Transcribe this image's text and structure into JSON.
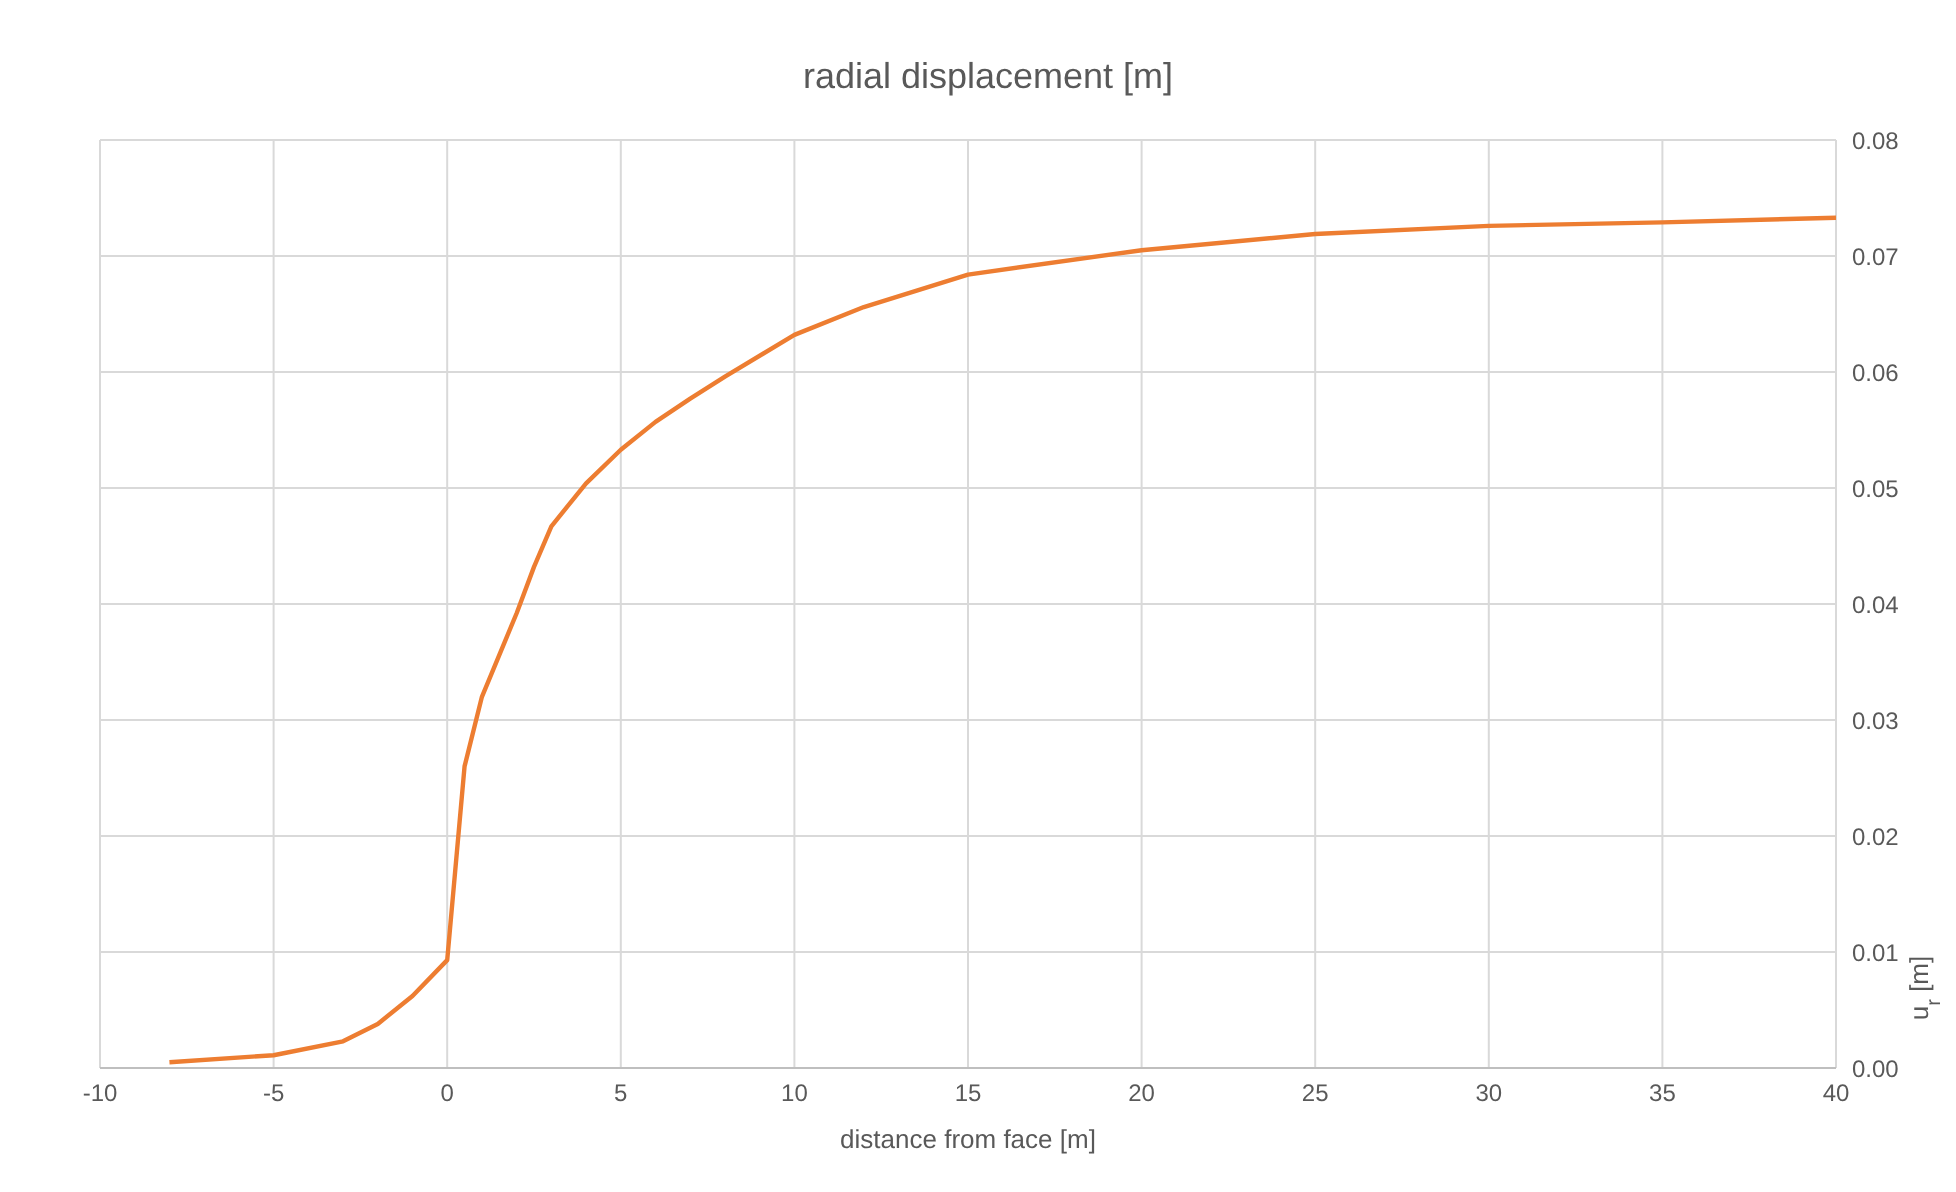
{
  "chart_data": {
    "type": "line",
    "title": "radial displacement [m]",
    "xlabel": "distance from face [m]",
    "ylabel": "u$_{r}$ [m]",
    "x": [
      -8,
      -5,
      -3,
      -2,
      -1,
      0,
      0.5,
      1,
      2,
      2.5,
      3,
      4,
      5,
      6,
      7,
      8,
      10,
      12,
      15,
      20,
      25,
      30,
      35,
      40
    ],
    "series": [
      {
        "color": "#ed7d31",
        "values": [
          0.0005,
          0.0011,
          0.0023,
          0.0038,
          0.0062,
          0.0093,
          0.026,
          0.032,
          0.0392,
          0.0432,
          0.0467,
          0.0504,
          0.0533,
          0.0557,
          0.0577,
          0.0596,
          0.0632,
          0.0656,
          0.0684,
          0.0705,
          0.0719,
          0.0726,
          0.0729,
          0.0733
        ]
      }
    ],
    "xlim": [
      -10,
      40
    ],
    "xticks": [
      -10,
      -5,
      0,
      5,
      10,
      15,
      20,
      25,
      30,
      35,
      40
    ],
    "ylim": [
      0,
      0.08
    ],
    "yticks": [
      {
        "value": 0,
        "label": "0.00"
      },
      {
        "value": 0.01,
        "label": "0.01"
      },
      {
        "value": 0.02,
        "label": "0.02"
      },
      {
        "value": 0.03,
        "label": "0.03"
      },
      {
        "value": 0.04,
        "label": "0.04"
      },
      {
        "value": 0.05,
        "label": "0.05"
      },
      {
        "value": 0.06,
        "label": "0.06"
      },
      {
        "value": 0.07,
        "label": "0.07"
      },
      {
        "value": 0.08,
        "label": "0.08"
      }
    ],
    "grid": true,
    "marker": "none",
    "line_style": "solid"
  }
}
